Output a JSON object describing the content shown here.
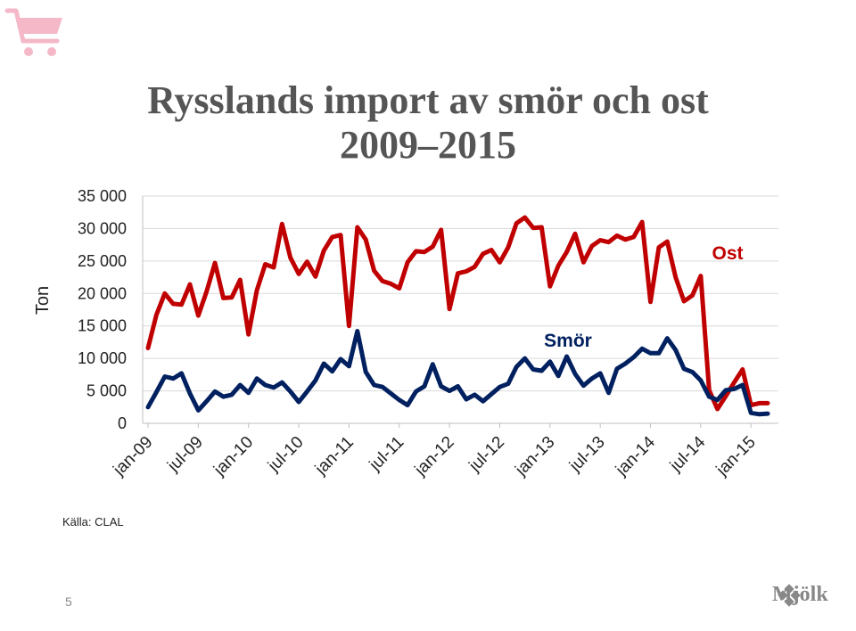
{
  "slide": {
    "title_line1": "Rysslands import av smör och ost",
    "title_line2": "2009–2015",
    "source": "Källa: CLAL",
    "page_number": "5",
    "logo_text": "Mjölk",
    "cart_icon": "shopping-cart-icon"
  },
  "colors": {
    "ost": "#c00000",
    "smor": "#002060",
    "title": "#555555",
    "cart": "#f4b8c8",
    "grid": "#d9d9d9"
  },
  "chart_data": {
    "type": "line",
    "ylabel": "Ton",
    "ylim": [
      0,
      35000
    ],
    "yticks": [
      "0",
      "5 000",
      "10 000",
      "15 000",
      "20 000",
      "25 000",
      "30 000",
      "35 000"
    ],
    "ytick_values": [
      0,
      5000,
      10000,
      15000,
      20000,
      25000,
      30000,
      35000
    ],
    "categories": [
      "jan-09",
      "feb-09",
      "mar-09",
      "apr-09",
      "maj-09",
      "jun-09",
      "jul-09",
      "aug-09",
      "sep-09",
      "okt-09",
      "nov-09",
      "dec-09",
      "jan-10",
      "feb-10",
      "mar-10",
      "apr-10",
      "maj-10",
      "jun-10",
      "jul-10",
      "aug-10",
      "sep-10",
      "okt-10",
      "nov-10",
      "dec-10",
      "jan-11",
      "feb-11",
      "mar-11",
      "apr-11",
      "maj-11",
      "jun-11",
      "jul-11",
      "aug-11",
      "sep-11",
      "okt-11",
      "nov-11",
      "dec-11",
      "jan-12",
      "feb-12",
      "mar-12",
      "apr-12",
      "maj-12",
      "jun-12",
      "jul-12",
      "aug-12",
      "sep-12",
      "okt-12",
      "nov-12",
      "dec-12",
      "jan-13",
      "feb-13",
      "mar-13",
      "apr-13",
      "maj-13",
      "jun-13",
      "jul-13",
      "aug-13",
      "sep-13",
      "okt-13",
      "nov-13",
      "dec-13",
      "jan-14",
      "feb-14",
      "mar-14",
      "apr-14",
      "maj-14",
      "jun-14",
      "jul-14",
      "aug-14",
      "sep-14",
      "okt-14",
      "nov-14",
      "dec-14",
      "jan-15",
      "feb-15",
      "mar-15"
    ],
    "xtick_labels": [
      "jan-09",
      "jul-09",
      "jan-10",
      "jul-10",
      "jan-11",
      "jul-11",
      "jan-12",
      "jul-12",
      "jan-13",
      "jul-13",
      "jan-14",
      "jul-14",
      "jan-15"
    ],
    "xtick_indices": [
      0,
      6,
      12,
      18,
      24,
      30,
      36,
      42,
      48,
      54,
      60,
      66,
      72
    ],
    "series": [
      {
        "name": "Ost",
        "key": "ost",
        "values": [
          11600,
          16700,
          20000,
          18400,
          18300,
          21400,
          16600,
          20300,
          24700,
          19300,
          19400,
          22100,
          13700,
          20500,
          24500,
          24000,
          30700,
          25500,
          23000,
          24900,
          22600,
          26600,
          28700,
          29000,
          15000,
          30200,
          28300,
          23500,
          21900,
          21500,
          20800,
          24800,
          26500,
          26400,
          27200,
          29800,
          17600,
          23100,
          23400,
          24100,
          26100,
          26700,
          24800,
          27100,
          30800,
          31700,
          30100,
          30200,
          21100,
          24300,
          26400,
          29200,
          24800,
          27300,
          28200,
          27900,
          28900,
          28300,
          28700,
          31000,
          18700,
          27100,
          28000,
          22500,
          18800,
          19700,
          22700,
          5100,
          2200,
          4200,
          6300,
          8300,
          2800,
          3100,
          3100
        ]
      },
      {
        "name": "Smör",
        "key": "smor",
        "values": [
          2500,
          4800,
          7200,
          6900,
          7700,
          4600,
          2000,
          3400,
          4900,
          4100,
          4400,
          5900,
          4700,
          6900,
          5900,
          5500,
          6300,
          4900,
          3300,
          4900,
          6600,
          9200,
          8000,
          9900,
          8800,
          14200,
          7900,
          5900,
          5600,
          4600,
          3600,
          2800,
          4900,
          5700,
          9100,
          5700,
          5000,
          5700,
          3700,
          4400,
          3400,
          4500,
          5600,
          6100,
          8700,
          10000,
          8300,
          8100,
          9500,
          7300,
          10300,
          7600,
          5800,
          6900,
          7700,
          4700,
          8400,
          9200,
          10200,
          11500,
          10800,
          10800,
          13100,
          11300,
          8400,
          7900,
          6600,
          4100,
          3600,
          5100,
          5300,
          5900,
          1600,
          1400,
          1500
        ]
      }
    ],
    "annotations": [
      {
        "text": "Ost",
        "series": "ost"
      },
      {
        "text": "Smör",
        "series": "smor"
      }
    ],
    "grid": true,
    "legend": "none"
  }
}
